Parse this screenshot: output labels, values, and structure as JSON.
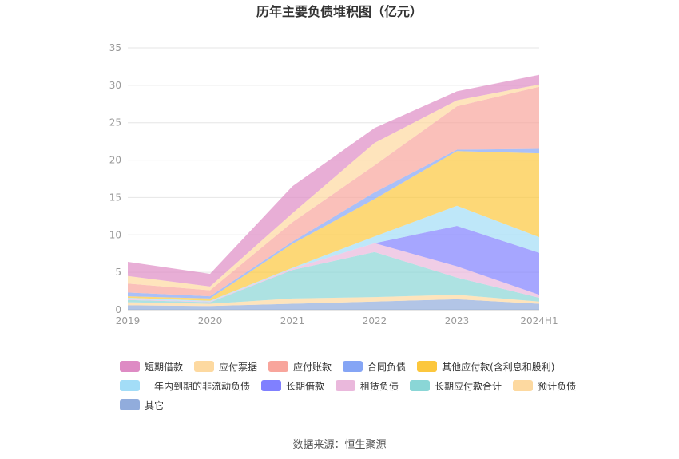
{
  "chart_data": {
    "type": "area",
    "stacked": true,
    "title": "历年主要负债堆积图（亿元）",
    "x": [
      "2019",
      "2020",
      "2021",
      "2022",
      "2023",
      "2024H1"
    ],
    "ylim": [
      0,
      35
    ],
    "yticks": [
      0,
      5,
      10,
      15,
      20,
      25,
      30,
      35
    ],
    "grid": true,
    "legend_position": "bottom",
    "series": [
      {
        "name": "其它",
        "color": "#91acdc",
        "values": [
          0.6,
          0.5,
          0.8,
          1.1,
          1.4,
          0.8
        ]
      },
      {
        "name": "预计负债",
        "color": "#fdd9a0",
        "values": [
          0.4,
          0.3,
          0.7,
          0.6,
          0.6,
          0.3
        ]
      },
      {
        "name": "长期应付款合计",
        "color": "#8ad6d6",
        "values": [
          0.3,
          0.2,
          3.8,
          6.0,
          2.3,
          0.5
        ]
      },
      {
        "name": "租赁负债",
        "color": "#eab8dc",
        "values": [
          0.1,
          0.1,
          0.2,
          1.2,
          1.5,
          0.4
        ]
      },
      {
        "name": "长期借款",
        "color": "#8080ff",
        "values": [
          0,
          0,
          0,
          0,
          5.4,
          5.6
        ]
      },
      {
        "name": "一年内到期的非流动负债",
        "color": "#a3ddf7",
        "values": [
          0.2,
          0.1,
          0.1,
          0.9,
          2.7,
          2.1
        ]
      },
      {
        "name": "其他应付款(含利息和股利)",
        "color": "#fcc73d",
        "values": [
          0.2,
          0.3,
          3.2,
          5.0,
          7.3,
          11.2
        ]
      },
      {
        "name": "合同负债",
        "color": "#85a5f5",
        "values": [
          0.5,
          0.3,
          0.3,
          0.9,
          0.2,
          0.6
        ]
      },
      {
        "name": "应付账款",
        "color": "#f8a59c",
        "values": [
          1.2,
          0.8,
          2.6,
          3.6,
          5.8,
          8.3
        ]
      },
      {
        "name": "应付票据",
        "color": "#fdd9a0",
        "values": [
          1.0,
          0.5,
          1.2,
          3.0,
          0.8,
          0.3
        ]
      },
      {
        "name": "短期借款",
        "color": "#de8bc4",
        "values": [
          1.9,
          1.7,
          3.6,
          2.0,
          1.2,
          1.3
        ]
      }
    ],
    "legend_order": [
      "短期借款",
      "应付票据",
      "应付账款",
      "合同负债",
      "其他应付款(含利息和股利)",
      "一年内到期的非流动负债",
      "长期借款",
      "租赁负债",
      "长期应付款合计",
      "预计负债",
      "其它"
    ]
  },
  "source": "数据来源：恒生聚源"
}
